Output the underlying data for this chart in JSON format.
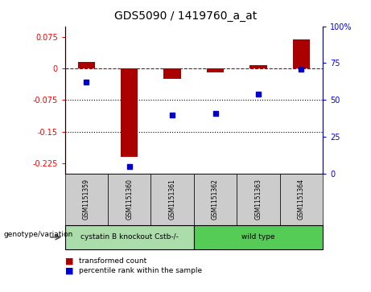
{
  "title": "GDS5090 / 1419760_a_at",
  "samples": [
    "GSM1151359",
    "GSM1151360",
    "GSM1151361",
    "GSM1151362",
    "GSM1151363",
    "GSM1151364"
  ],
  "red_values": [
    0.015,
    -0.21,
    -0.025,
    -0.01,
    0.008,
    0.068
  ],
  "blue_percentile": [
    62,
    5,
    40,
    41,
    54,
    71
  ],
  "ylim_left": [
    -0.25,
    0.1
  ],
  "yticks_left": [
    0.075,
    0,
    -0.075,
    -0.15,
    -0.225
  ],
  "yticks_right_vals": [
    100,
    75,
    50,
    25,
    0
  ],
  "dotted_lines": [
    -0.075,
    -0.15
  ],
  "bar_color": "#AA0000",
  "dot_color": "#0000CC",
  "legend_items": [
    "transformed count",
    "percentile rank within the sample"
  ],
  "genotype_label": "genotype/variation",
  "group1_color": "#aaddaa",
  "group2_color": "#55cc55",
  "group1_label": "cystatin B knockout Cstb-/-",
  "group2_label": "wild type",
  "sample_box_color": "#cccccc"
}
